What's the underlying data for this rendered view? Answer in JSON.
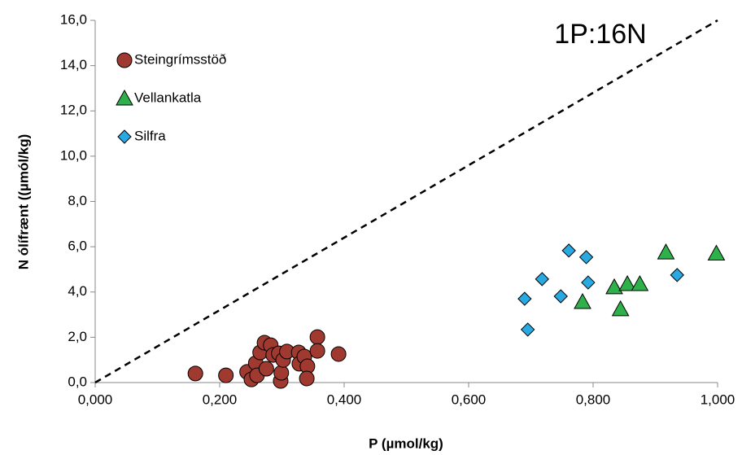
{
  "chart_data": {
    "type": "scatter",
    "x_label": "P (µmol/kg)",
    "y_label": "N ólífrænt ((µmól/kg)",
    "annotation": "1P:16N",
    "annotation_color": "#c00000",
    "xlim": [
      0,
      1
    ],
    "ylim": [
      0,
      16
    ],
    "xticks": [
      {
        "value": 0,
        "label": "0,000"
      },
      {
        "value": 0.2,
        "label": "0,200"
      },
      {
        "value": 0.4,
        "label": "0,400"
      },
      {
        "value": 0.6,
        "label": "0,600"
      },
      {
        "value": 0.8,
        "label": "0,800"
      },
      {
        "value": 1,
        "label": "1,000"
      }
    ],
    "yticks": [
      {
        "value": 0,
        "label": "0,0"
      },
      {
        "value": 2,
        "label": "2,0"
      },
      {
        "value": 4,
        "label": "4,0"
      },
      {
        "value": 6,
        "label": "6,0"
      },
      {
        "value": 8,
        "label": "8,0"
      },
      {
        "value": 10,
        "label": "10,0"
      },
      {
        "value": 12,
        "label": "12,0"
      },
      {
        "value": 14,
        "label": "14,0"
      },
      {
        "value": 16,
        "label": "16,0"
      }
    ],
    "grid": false,
    "legend": "upper left",
    "series": [
      {
        "name": "Steingrímsstöð",
        "color": "#a0392f",
        "marker": "circle",
        "x": [
          0.161,
          0.21,
          0.244,
          0.251,
          0.258,
          0.26,
          0.265,
          0.272,
          0.275,
          0.282,
          0.286,
          0.295,
          0.298,
          0.299,
          0.302,
          0.308,
          0.327,
          0.328,
          0.336,
          0.341,
          0.34,
          0.357,
          0.357,
          0.391
        ],
        "values": [
          0.4,
          0.32,
          0.47,
          0.14,
          0.86,
          0.32,
          1.33,
          1.76,
          0.61,
          1.65,
          1.22,
          1.29,
          0.07,
          0.43,
          1.0,
          1.37,
          1.33,
          0.83,
          1.15,
          0.72,
          0.18,
          2.01,
          1.4,
          1.26
        ]
      },
      {
        "name": "Vellankatla",
        "color": "#2eb04a",
        "marker": "triangle",
        "x": [
          0.783,
          0.834,
          0.844,
          0.855,
          0.875,
          0.917,
          0.998
        ],
        "values": [
          3.56,
          4.21,
          3.24,
          4.35,
          4.35,
          5.75,
          5.7
        ]
      },
      {
        "name": "Silfra",
        "color": "#29a9e1",
        "marker": "diamond",
        "x": [
          0.69,
          0.695,
          0.718,
          0.748,
          0.761,
          0.789,
          0.792,
          0.935
        ],
        "values": [
          3.7,
          2.34,
          4.57,
          3.81,
          5.83,
          5.54,
          4.42,
          4.75
        ]
      }
    ]
  }
}
